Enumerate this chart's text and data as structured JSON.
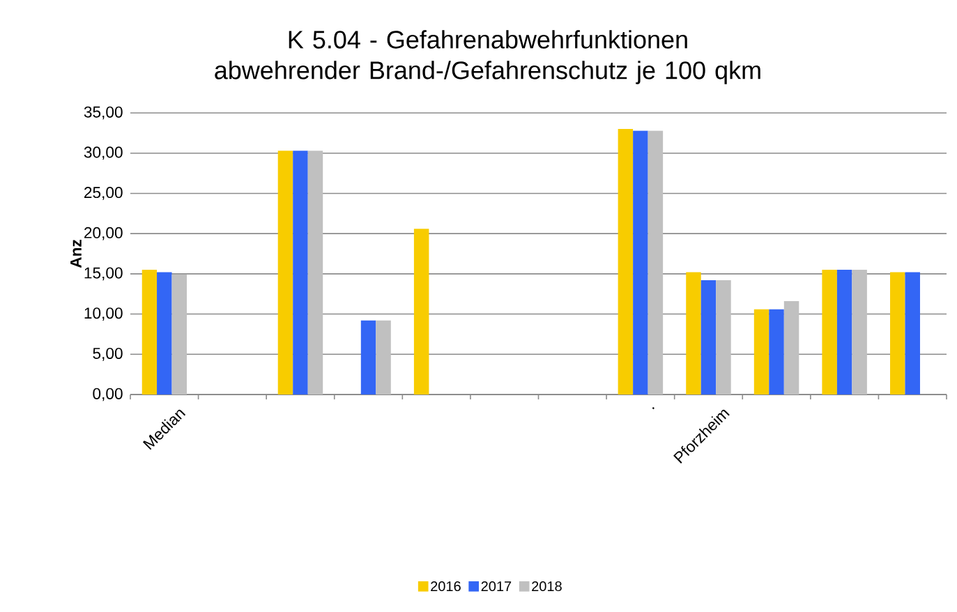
{
  "chart_data": {
    "type": "bar",
    "title": "K 5.04 - Gefahrenabwehrfunktionen abwehrender Brand-/Gefahrenschutz je 100 qkm",
    "ylabel": "Anz",
    "categories": [
      "Median",
      null,
      null,
      null,
      null,
      null,
      null,
      ".",
      "Pforzheim",
      null,
      null,
      null
    ],
    "series": [
      {
        "name": "2016",
        "color": "#f8cc00",
        "values": [
          15.5,
          null,
          30.3,
          null,
          20.6,
          null,
          null,
          33.0,
          15.2,
          10.6,
          15.5,
          15.2
        ]
      },
      {
        "name": "2017",
        "color": "#3366f5",
        "values": [
          15.2,
          null,
          30.3,
          9.2,
          null,
          null,
          null,
          32.8,
          14.2,
          10.6,
          15.5,
          15.2
        ]
      },
      {
        "name": "2018",
        "color": "#c0c0c0",
        "values": [
          14.9,
          null,
          30.3,
          9.2,
          null,
          null,
          null,
          32.8,
          14.2,
          11.6,
          15.5,
          null
        ]
      }
    ],
    "ylim": [
      0,
      35
    ],
    "yticks": [
      {
        "value": 0,
        "label": "0,00"
      },
      {
        "value": 5,
        "label": "5,00"
      },
      {
        "value": 10,
        "label": "10,00"
      },
      {
        "value": 15,
        "label": "15,00"
      },
      {
        "value": 20,
        "label": "20,00"
      },
      {
        "value": 25,
        "label": "25,00"
      },
      {
        "value": 30,
        "label": "30,00"
      },
      {
        "value": 35,
        "label": "35,00"
      }
    ],
    "grid": "y",
    "legend": "bottom"
  }
}
